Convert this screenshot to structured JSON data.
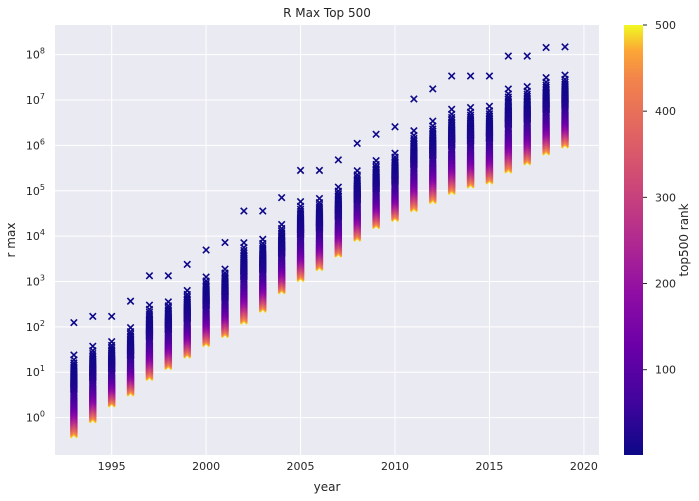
{
  "chart_data": {
    "type": "scatter",
    "title": "R Max Top 500",
    "xlabel": "year",
    "ylabel": "r max",
    "x_scale": "linear",
    "y_scale": "log",
    "xlim": [
      1992.0,
      2020.8
    ],
    "ylim": [
      0.15,
      450000000
    ],
    "x_ticks": [
      1995,
      2000,
      2005,
      2010,
      2015,
      2020
    ],
    "y_ticks": [
      1,
      10,
      100,
      1000,
      10000,
      100000,
      1000000,
      10000000,
      100000000
    ],
    "y_tick_labels": [
      "10^0",
      "10^1",
      "10^2",
      "10^3",
      "10^4",
      "10^5",
      "10^6",
      "10^7",
      "10^8"
    ],
    "grid": true,
    "marker": "x",
    "colormap": "plasma",
    "colorbar": {
      "label": "top500 rank",
      "range": [
        1,
        500
      ],
      "ticks": [
        100,
        200,
        300,
        400,
        500
      ]
    },
    "years": [
      1993,
      1994,
      1995,
      1996,
      1997,
      1998,
      1999,
      2000,
      2001,
      2002,
      2003,
      2004,
      2005,
      2006,
      2007,
      2008,
      2009,
      2010,
      2011,
      2012,
      2013,
      2014,
      2015,
      2016,
      2017,
      2018,
      2019
    ],
    "series": [
      {
        "year": 1993,
        "rank1": 124,
        "rank500": 0.42
      },
      {
        "year": 1994,
        "rank1": 170,
        "rank500": 0.9
      },
      {
        "year": 1995,
        "rank1": 170,
        "rank500": 2.0
      },
      {
        "year": 1996,
        "rank1": 368,
        "rank500": 3.5
      },
      {
        "year": 1997,
        "rank1": 1340,
        "rank500": 7.7
      },
      {
        "year": 1998,
        "rank1": 1340,
        "rank500": 13.4
      },
      {
        "year": 1999,
        "rank1": 2380,
        "rank500": 24
      },
      {
        "year": 2000,
        "rank1": 4940,
        "rank500": 43
      },
      {
        "year": 2001,
        "rank1": 7230,
        "rank500": 67.8
      },
      {
        "year": 2002,
        "rank1": 35860,
        "rank500": 134
      },
      {
        "year": 2003,
        "rank1": 35860,
        "rank500": 245
      },
      {
        "year": 2004,
        "rank1": 70720,
        "rank500": 624
      },
      {
        "year": 2005,
        "rank1": 280600,
        "rank500": 1166
      },
      {
        "year": 2006,
        "rank1": 280600,
        "rank500": 2026
      },
      {
        "year": 2007,
        "rank1": 478200,
        "rank500": 4005
      },
      {
        "year": 2008,
        "rank1": 1105000,
        "rank500": 9000
      },
      {
        "year": 2009,
        "rank1": 1759000,
        "rank500": 17100
      },
      {
        "year": 2010,
        "rank1": 2566000,
        "rank500": 24700
      },
      {
        "year": 2011,
        "rank1": 10510000,
        "rank500": 40100
      },
      {
        "year": 2012,
        "rank1": 17590000,
        "rank500": 60800
      },
      {
        "year": 2013,
        "rank1": 33860000,
        "rank500": 96600
      },
      {
        "year": 2014,
        "rank1": 33860000,
        "rank500": 133700
      },
      {
        "year": 2015,
        "rank1": 33860000,
        "rank500": 164000
      },
      {
        "year": 2016,
        "rank1": 93010000,
        "rank500": 286000
      },
      {
        "year": 2017,
        "rank1": 93010000,
        "rank500": 432000
      },
      {
        "year": 2018,
        "rank1": 143500000,
        "rank500": 715000
      },
      {
        "year": 2019,
        "rank1": 148600000,
        "rank500": 1022000
      }
    ]
  }
}
